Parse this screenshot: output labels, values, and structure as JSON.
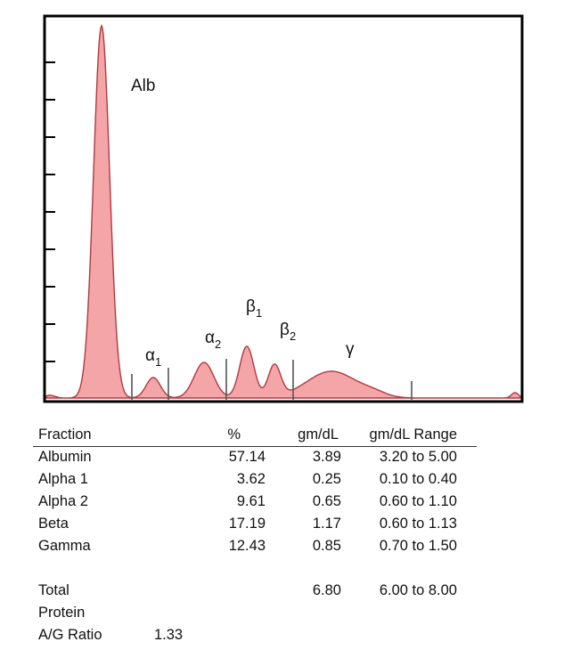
{
  "chart_data": {
    "type": "area",
    "title": "",
    "xlabel": "",
    "ylabel": "",
    "fill_color": "#f4a5a8",
    "line_color": "#b03a40",
    "frame_color": "#000000",
    "peak_labels": [
      {
        "id": "alb",
        "text": "Alb",
        "sub": ""
      },
      {
        "id": "a1",
        "text": "α",
        "sub": "1"
      },
      {
        "id": "a2",
        "text": "α",
        "sub": "2"
      },
      {
        "id": "b1",
        "text": "β",
        "sub": "1"
      },
      {
        "id": "b2",
        "text": "β",
        "sub": "2"
      },
      {
        "id": "g",
        "text": "γ",
        "sub": ""
      }
    ]
  },
  "table": {
    "headers": {
      "fraction": "Fraction",
      "pct": "%",
      "gm": "gm/dL",
      "range": "gm/dL Range"
    },
    "rows": [
      {
        "name": "Albumin",
        "pct": "57.14",
        "gm": "3.89",
        "range": "3.20 to 5.00"
      },
      {
        "name": "Alpha 1",
        "pct": "3.62",
        "gm": "0.25",
        "range": "0.10 to 0.40"
      },
      {
        "name": "Alpha 2",
        "pct": "9.61",
        "gm": "0.65",
        "range": "0.60 to 1.10"
      },
      {
        "name": "Beta",
        "pct": "17.19",
        "gm": "1.17",
        "range": "0.60 to 1.13"
      },
      {
        "name": "Gamma",
        "pct": "12.43",
        "gm": "0.85",
        "range": "0.70 to 1.50"
      }
    ],
    "total": {
      "name_line1": "Total",
      "name_line2": "Protein",
      "gm": "6.80",
      "range": "6.00 to 8.00"
    },
    "ag_ratio": {
      "label": "A/G Ratio",
      "value": "1.33"
    }
  }
}
